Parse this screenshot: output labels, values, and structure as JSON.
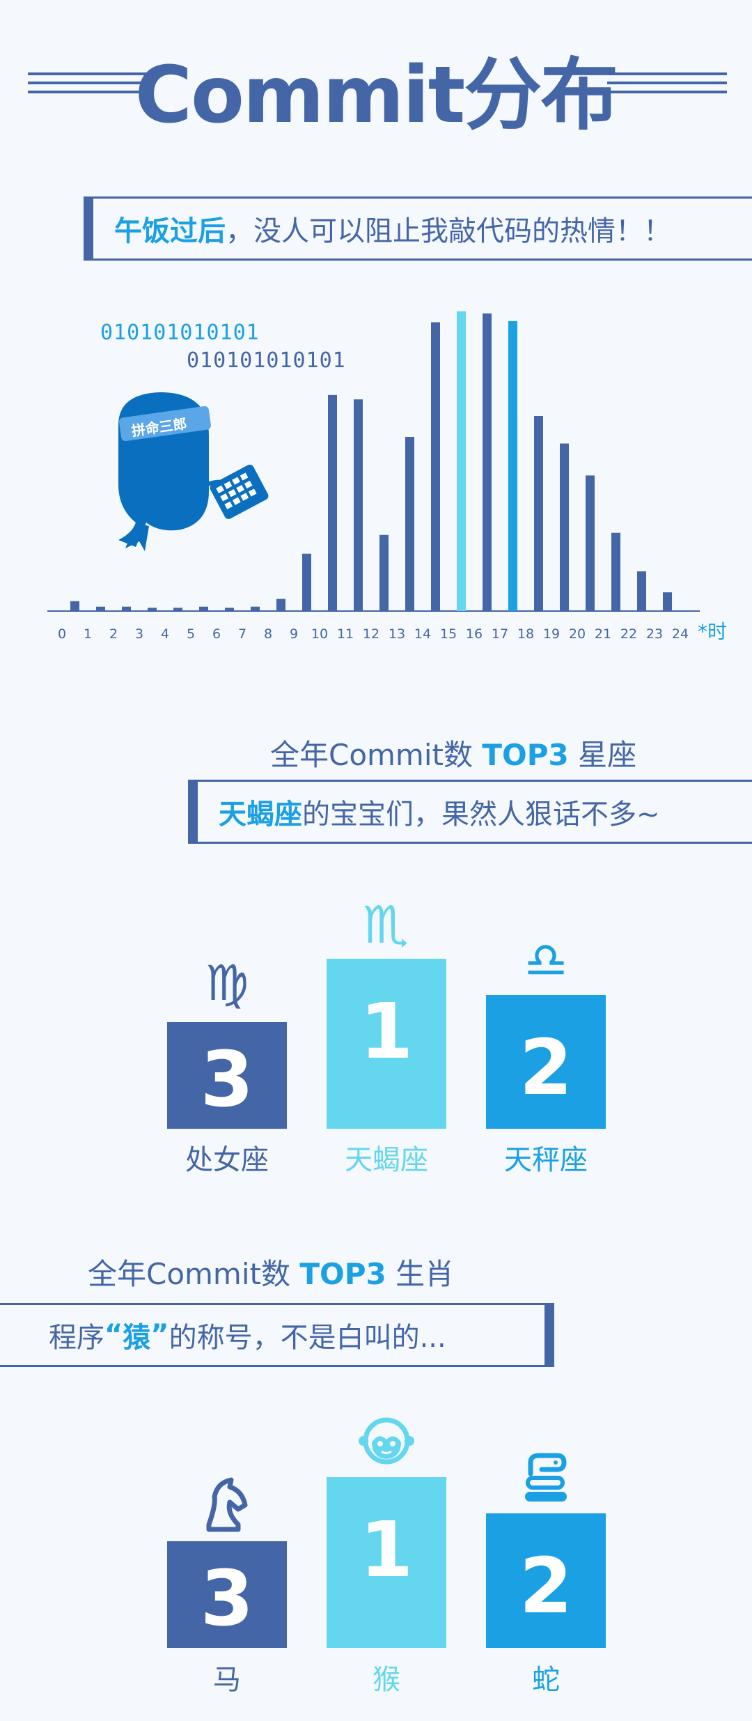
{
  "header": {
    "title": "Commit分布"
  },
  "callout1": {
    "highlight": "午饭过后",
    "text": "，没人可以阻止我敲代码的热情！！"
  },
  "binary": {
    "line1": "010101010101",
    "line2": "010101010101"
  },
  "mascot": {
    "headband_text": "拼命三郎"
  },
  "colors": {
    "primary": "#4566a6",
    "light": "#64d7ef",
    "bright": "#1aa0e3",
    "background": "#f5f8fd"
  },
  "chart_data": {
    "type": "bar",
    "categories": [
      "0",
      "1",
      "2",
      "3",
      "4",
      "5",
      "6",
      "7",
      "8",
      "9",
      "10",
      "11",
      "12",
      "13",
      "14",
      "15",
      "16",
      "17",
      "18",
      "19",
      "20",
      "21",
      "22",
      "23"
    ],
    "axis_ticks": [
      "0",
      "1",
      "2",
      "3",
      "4",
      "5",
      "6",
      "7",
      "8",
      "9",
      "10",
      "11",
      "12",
      "13",
      "14",
      "15",
      "16",
      "17",
      "18",
      "19",
      "20",
      "21",
      "22",
      "23",
      "24"
    ],
    "unit_label": "*时",
    "values": [
      9,
      4,
      4,
      3,
      3,
      4,
      3,
      4,
      11,
      52,
      196,
      192,
      69,
      158,
      262,
      272,
      270,
      263,
      177,
      152,
      123,
      71,
      36,
      17
    ],
    "highlight_colors": {
      "15": "#64d7ef",
      "16": "#4566a6",
      "17": "#1aa0e3"
    },
    "ylim": [
      0,
      280
    ],
    "grid": false
  },
  "zodiac_section": {
    "heading_prefix": "全年Commit数",
    "heading_highlight": "TOP3",
    "heading_suffix": "星座",
    "callout_highlight": "天蝎座",
    "callout_text": "的宝宝们，果然人狠话不多~",
    "podium": [
      {
        "rank": "3",
        "name": "处女座",
        "symbol": "♍",
        "icon": "virgo-icon",
        "color": "#4566a6"
      },
      {
        "rank": "1",
        "name": "天蝎座",
        "symbol": "♏",
        "icon": "scorpio-icon",
        "color": "#64d7ef"
      },
      {
        "rank": "2",
        "name": "天秤座",
        "symbol": "♎",
        "icon": "libra-icon",
        "color": "#1aa0e3"
      }
    ]
  },
  "shengxiao_section": {
    "heading_prefix": "全年Commit数",
    "heading_highlight": "TOP3",
    "heading_suffix": "生肖",
    "callout_prefix": "程序",
    "callout_open_quote": "“",
    "callout_highlight": "猿",
    "callout_close_quote": "”",
    "callout_text": "的称号，不是白叫的...",
    "podium": [
      {
        "rank": "3",
        "name": "马",
        "icon": "horse-icon",
        "color": "#4566a6"
      },
      {
        "rank": "1",
        "name": "猴",
        "icon": "monkey-icon",
        "color": "#64d7ef"
      },
      {
        "rank": "2",
        "name": "蛇",
        "icon": "snake-icon",
        "color": "#1aa0e3"
      }
    ]
  }
}
